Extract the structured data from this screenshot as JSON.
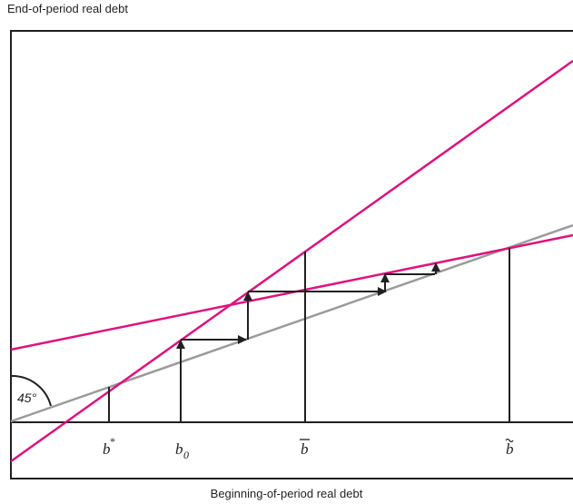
{
  "diagram": {
    "y_axis_label": "End-of-period real debt",
    "x_axis_label": "Beginning-of-period real debt",
    "angle_label": "45°",
    "ticks": {
      "b_star": "b",
      "b_star_sup": "*",
      "b_zero": "b",
      "b_zero_sub": "0",
      "b_bar": "b",
      "b_tilde": "b"
    },
    "colors": {
      "frame": "#231f20",
      "steep_line": "#e0117f",
      "flat_line": "#e0117f",
      "forty_five_line": "#9b9b9b"
    }
  }
}
